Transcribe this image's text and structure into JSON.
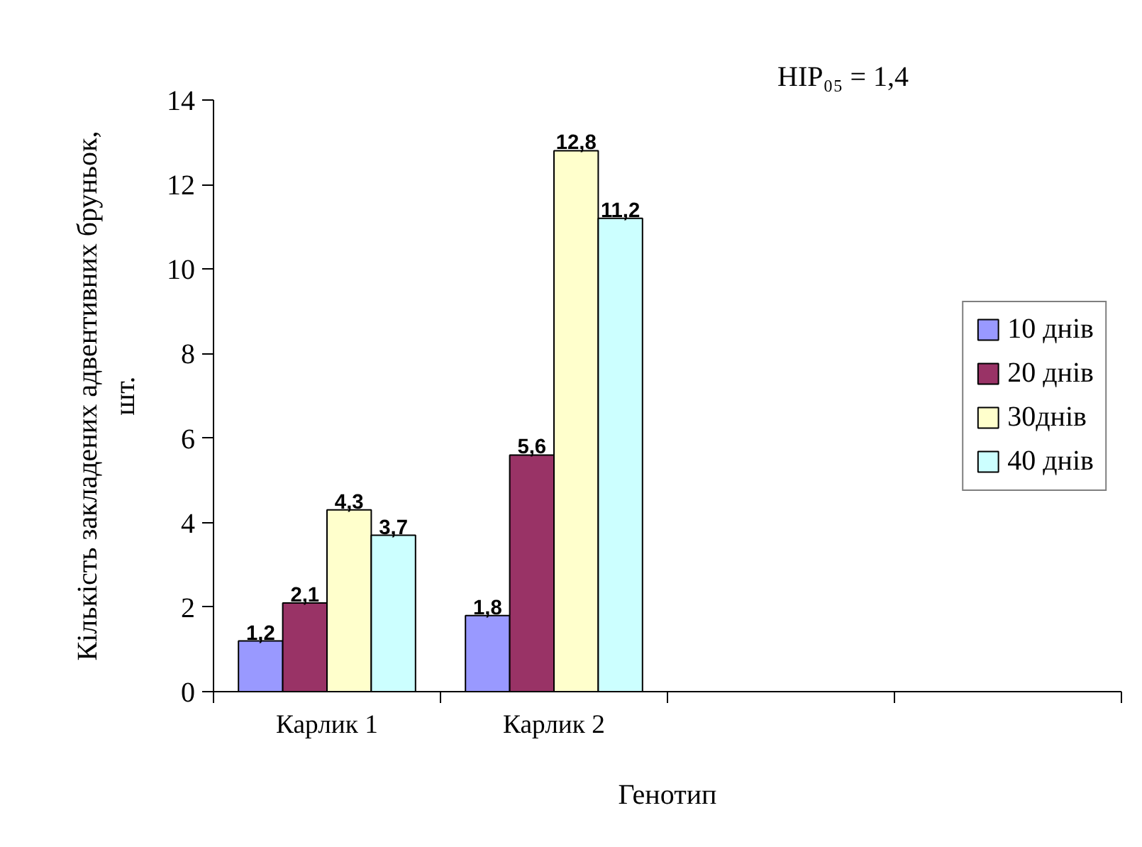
{
  "chart_data": {
    "type": "bar",
    "xlabel": "Генотип",
    "ylabel": "Кількість закладених адвентивних бруньок, шт.",
    "categories": [
      "Карлик 1",
      "Карлик 2",
      null,
      null
    ],
    "series": [
      {
        "name": "10 днів",
        "color": "#9999ff",
        "values": [
          1.2,
          1.8,
          null,
          null
        ],
        "value_labels": [
          "1,2",
          "1,8",
          null,
          null
        ]
      },
      {
        "name": "20 днів",
        "color": "#993366",
        "values": [
          2.1,
          5.6,
          null,
          null
        ],
        "value_labels": [
          "2,1",
          "5,6",
          null,
          null
        ]
      },
      {
        "name": "30днів",
        "color": "#ffffcc",
        "values": [
          4.3,
          12.8,
          null,
          null
        ],
        "value_labels": [
          "4,3",
          "12,8",
          null,
          null
        ]
      },
      {
        "name": "40 днів",
        "color": "#ccffff",
        "values": [
          3.7,
          11.2,
          null,
          null
        ],
        "value_labels": [
          "3,7",
          "11,2",
          null,
          null
        ]
      }
    ],
    "ylim": [
      0,
      14
    ],
    "yticks": [
      0,
      2,
      4,
      6,
      8,
      10,
      12,
      14
    ],
    "grid": false,
    "legend": "right",
    "annotations": [
      "НІР₀₅ = 1,4"
    ]
  }
}
